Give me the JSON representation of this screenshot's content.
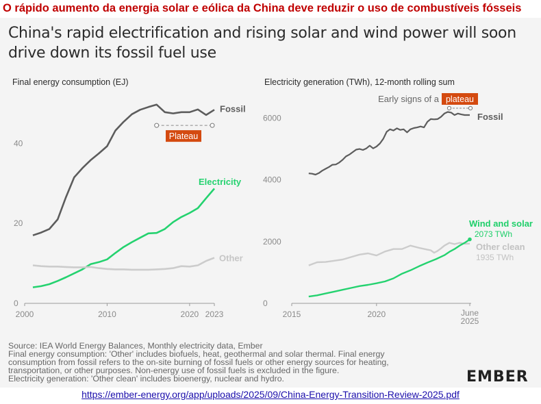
{
  "banner_title": "O rápido aumento da energia solar e eólica da China deve reduzir o uso de combustíveis fósseis",
  "title_lines": [
    "China's rapid electrification and rising solar and wind power will soon",
    "drive down its fossil fuel use"
  ],
  "source_notes": [
    "Source: IEA World Energy Balances, Monthly electricity data, Ember",
    "Final energy consumption: 'Other' includes biofuels, heat, geothermal and solar thermal. Final energy",
    "consumption from fossil refers to the on-site burning of fossil fuels or other energy sources for heating,",
    "transportation, or other purposes. Non-energy use of fossil fuels is excluded in the figure.",
    "Electricity generation: 'Other clean' includes bioenergy, nuclear and hydro."
  ],
  "logo_text": "EMBER",
  "source_link": "https://ember-energy.org/app/uploads/2025/09/China-Energy-Transition-Review-2025.pdf",
  "colors": {
    "fossil": "#5c5c5c",
    "electricity": "#24d26f",
    "other": "#cccccc",
    "plateau": "#d44a10",
    "text": "#2b2b2b",
    "axis": "#9a9a9a"
  },
  "chart_data": [
    {
      "type": "line",
      "title": "Final energy consumption (EJ)",
      "xlabel": "",
      "ylabel": "EJ",
      "xlim": [
        2000,
        2023
      ],
      "ylim": [
        0,
        50
      ],
      "xticks": [
        2000,
        2010,
        2020,
        2023
      ],
      "yticks": [
        0,
        20,
        40
      ],
      "grid": false,
      "annotation": {
        "label": "Plateau",
        "x_start": 2016,
        "x_end": 2023,
        "y": 44.5
      },
      "series": [
        {
          "name": "Fossil",
          "key": "fossil",
          "x": [
            2001,
            2002,
            2003,
            2004,
            2005,
            2006,
            2007,
            2008,
            2009,
            2010,
            2011,
            2012,
            2013,
            2014,
            2015,
            2016,
            2017,
            2018,
            2019,
            2020,
            2021,
            2022,
            2023
          ],
          "values": [
            17,
            17.7,
            18.6,
            21,
            26.5,
            31.5,
            33.8,
            35.8,
            37.5,
            39.3,
            43.2,
            45.4,
            47.3,
            48.4,
            49.1,
            49.7,
            47.8,
            47.5,
            47.8,
            47.8,
            48.5,
            47.1,
            48.4
          ]
        },
        {
          "name": "Electricity",
          "key": "electricity",
          "x": [
            2001,
            2002,
            2003,
            2004,
            2005,
            2006,
            2007,
            2008,
            2009,
            2010,
            2011,
            2012,
            2013,
            2014,
            2015,
            2016,
            2017,
            2018,
            2019,
            2020,
            2021,
            2022,
            2023
          ],
          "values": [
            4,
            4.3,
            4.8,
            5.6,
            6.5,
            7.5,
            8.5,
            9.8,
            10.3,
            11,
            12.6,
            14.1,
            15.3,
            16.4,
            17.5,
            17.6,
            18.6,
            20.3,
            21.6,
            22.6,
            23.8,
            26.3,
            28.7
          ]
        },
        {
          "name": "Other",
          "key": "other",
          "x": [
            2001,
            2002,
            2003,
            2004,
            2005,
            2006,
            2007,
            2008,
            2009,
            2010,
            2011,
            2012,
            2013,
            2014,
            2015,
            2016,
            2017,
            2018,
            2019,
            2020,
            2021,
            2022,
            2023
          ],
          "values": [
            9.5,
            9.3,
            9.2,
            9.2,
            9.1,
            9.0,
            9.0,
            9.1,
            8.8,
            8.6,
            8.5,
            8.5,
            8.4,
            8.4,
            8.4,
            8.5,
            8.6,
            8.8,
            9.3,
            9.2,
            9.5,
            10.6,
            11.4
          ]
        }
      ]
    },
    {
      "type": "line",
      "title": "Electricity generation (TWh), 12-month rolling sum",
      "xlabel": "",
      "ylabel": "TWh",
      "xlim": [
        2015,
        2025.5
      ],
      "ylim": [
        0,
        6500
      ],
      "xticks": [
        2015,
        2020
      ],
      "xtick_end": {
        "line1": "June",
        "line2": "2025",
        "x": 2025.5
      },
      "yticks": [
        0,
        2000,
        4000,
        6000
      ],
      "grid": false,
      "annotation": {
        "label_prefix": "Early signs of a",
        "label": "plateau",
        "x_start": 2024.2,
        "x_end": 2025.5,
        "y": 6380
      },
      "end_labels": {
        "wind_solar_value": "2073 TWh",
        "other_clean_value": "1935 TWh"
      },
      "series": [
        {
          "name": "Fossil",
          "key": "fossil",
          "x": [
            2016,
            2016.2,
            2016.4,
            2016.6,
            2016.8,
            2017,
            2017.2,
            2017.4,
            2017.6,
            2017.8,
            2018,
            2018.2,
            2018.4,
            2018.6,
            2018.8,
            2019,
            2019.2,
            2019.4,
            2019.6,
            2019.8,
            2020,
            2020.2,
            2020.4,
            2020.6,
            2020.8,
            2021,
            2021.2,
            2021.4,
            2021.6,
            2021.8,
            2022,
            2022.2,
            2022.4,
            2022.6,
            2022.8,
            2023,
            2023.2,
            2023.4,
            2023.6,
            2023.8,
            2024,
            2024.2,
            2024.4,
            2024.6,
            2024.8,
            2025,
            2025.2,
            2025.5
          ],
          "values": [
            4210,
            4200,
            4170,
            4220,
            4300,
            4360,
            4420,
            4490,
            4500,
            4560,
            4650,
            4760,
            4820,
            4900,
            4980,
            5000,
            4970,
            5020,
            5110,
            5020,
            5080,
            5180,
            5330,
            5560,
            5640,
            5600,
            5670,
            5620,
            5640,
            5540,
            5640,
            5680,
            5700,
            5730,
            5700,
            5880,
            5970,
            5960,
            5970,
            6040,
            6150,
            6200,
            6180,
            6100,
            6150,
            6120,
            6100,
            6100
          ]
        },
        {
          "name": "Other clean",
          "key": "other",
          "x": [
            2016,
            2016.5,
            2017,
            2017.5,
            2018,
            2018.5,
            2019,
            2019.5,
            2020,
            2020.5,
            2021,
            2021.5,
            2022,
            2022.5,
            2023,
            2023.2,
            2023.4,
            2023.6,
            2023.8,
            2024,
            2024.3,
            2024.6,
            2024.9,
            2025.2,
            2025.5
          ],
          "values": [
            1230,
            1330,
            1340,
            1380,
            1420,
            1500,
            1580,
            1620,
            1550,
            1680,
            1760,
            1760,
            1870,
            1800,
            1740,
            1720,
            1640,
            1700,
            1780,
            1870,
            1960,
            1920,
            1960,
            1930,
            1935
          ]
        },
        {
          "name": "Wind and solar",
          "key": "electricity",
          "x": [
            2016,
            2016.5,
            2017,
            2017.5,
            2018,
            2018.5,
            2019,
            2019.5,
            2020,
            2020.5,
            2021,
            2021.5,
            2022,
            2022.5,
            2023,
            2023.5,
            2024,
            2024.3,
            2024.6,
            2024.9,
            2025.2,
            2025.5
          ],
          "values": [
            220,
            260,
            320,
            380,
            440,
            500,
            560,
            600,
            650,
            710,
            810,
            960,
            1070,
            1200,
            1320,
            1430,
            1560,
            1670,
            1760,
            1870,
            1960,
            2073
          ]
        }
      ]
    }
  ]
}
